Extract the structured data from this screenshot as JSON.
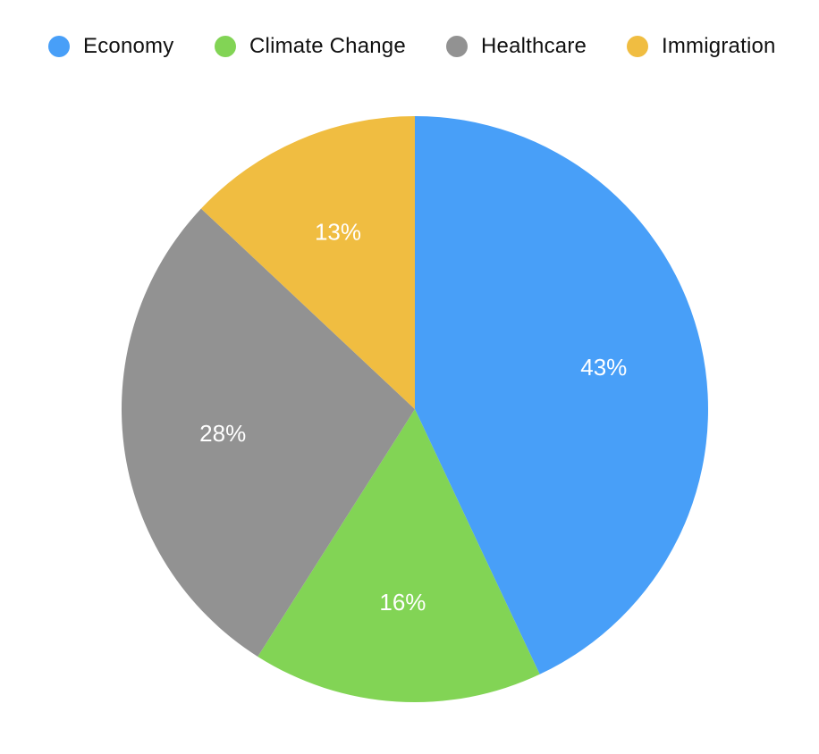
{
  "chart_data": {
    "type": "pie",
    "title": "",
    "categories": [
      "Economy",
      "Climate Change",
      "Healthcare",
      "Immigration"
    ],
    "values": [
      43,
      16,
      28,
      13
    ],
    "labels": [
      "43%",
      "16%",
      "28%",
      "13%"
    ],
    "colors": [
      "#489FF8",
      "#82D455",
      "#929292",
      "#F0BD41"
    ],
    "legend": {
      "position": "top",
      "entries": [
        "Economy",
        "Climate Change",
        "Healthcare",
        "Immigration"
      ]
    },
    "start": "top",
    "direction": "clockwise"
  }
}
